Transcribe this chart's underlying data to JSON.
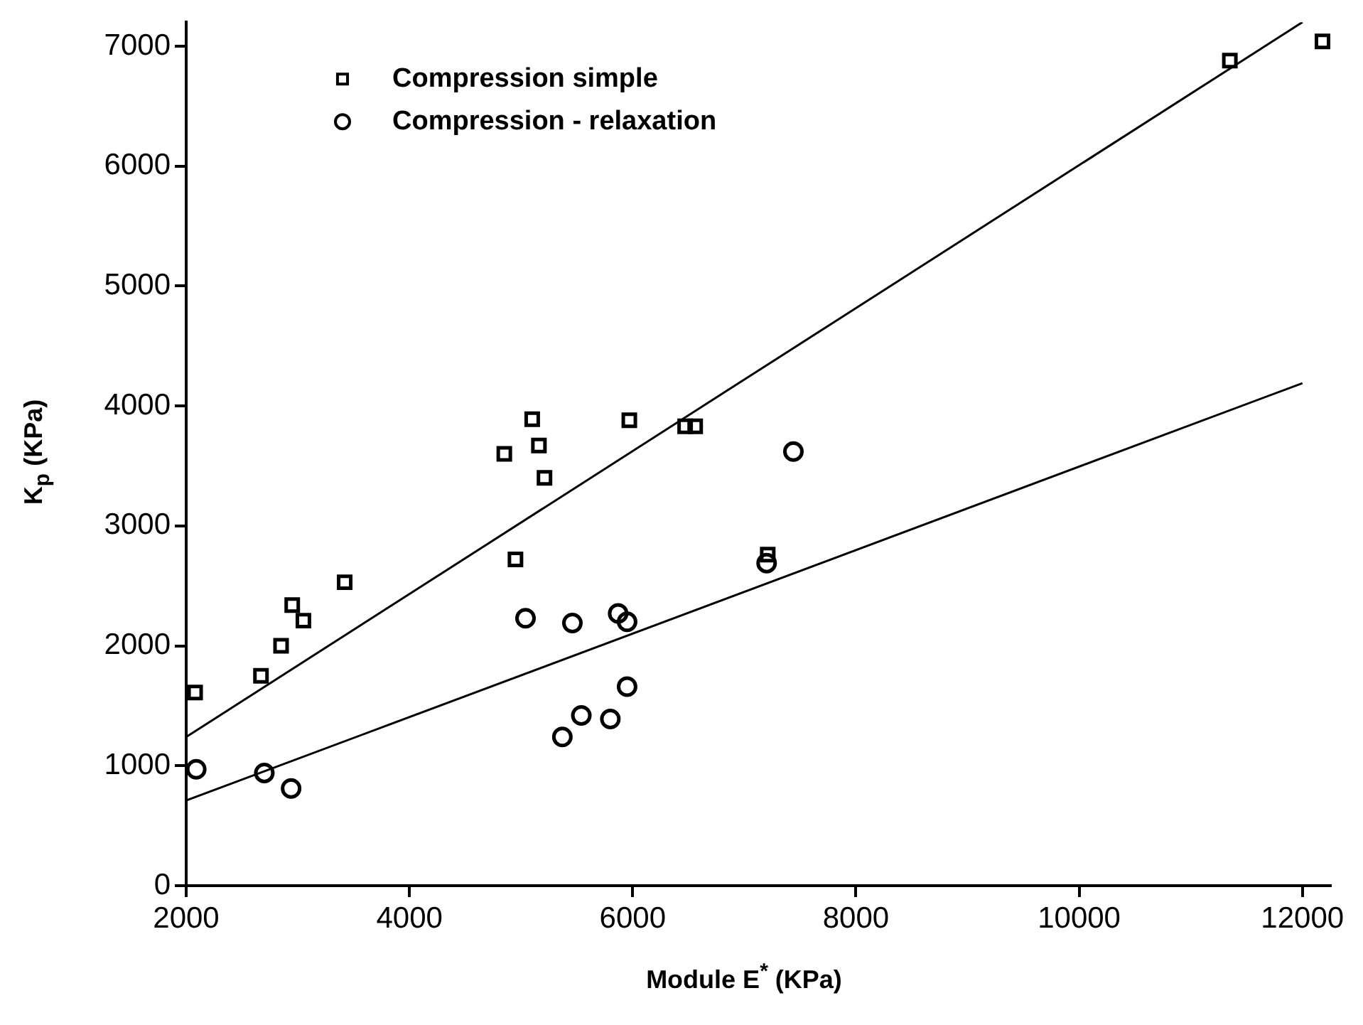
{
  "chart_data": {
    "type": "scatter",
    "xlabel": "Module E$^{*}$ (KPa)",
    "ylabel": "K$_{p}$ (KPa)",
    "xlim": [
      2000,
      12250
    ],
    "xticks": [
      2000,
      4000,
      6000,
      8000,
      10000,
      12000
    ],
    "ylim": [
      0,
      7200
    ],
    "yticks": [
      0,
      1000,
      2000,
      3000,
      4000,
      5000,
      6000,
      7000
    ],
    "legend": "top left",
    "grid": false,
    "series": [
      {
        "name": "Compression simple",
        "type": "scatter",
        "marker": "square",
        "color": "#000000",
        "x": [
          2080,
          2670,
          2850,
          2950,
          3050,
          3420,
          4850,
          5100,
          5160,
          5210,
          4950,
          5970,
          6470,
          6560,
          7210,
          11350,
          12180
        ],
        "values": [
          1610,
          1750,
          2000,
          2340,
          2210,
          2530,
          3600,
          3890,
          3670,
          3400,
          2720,
          3880,
          3830,
          3830,
          2760,
          6880,
          7040
        ]
      },
      {
        "name": "Compression - relaxation",
        "type": "scatter",
        "marker": "circle",
        "color": "#000000",
        "x": [
          2090,
          2700,
          2940,
          5040,
          5460,
          5870,
          5950,
          5950,
          5540,
          5800,
          5370,
          7440,
          7200
        ],
        "values": [
          970,
          940,
          810,
          2230,
          2190,
          2270,
          2200,
          1660,
          1420,
          1390,
          1240,
          3620,
          2690
        ]
      },
      {
        "type": "line",
        "marker": "none",
        "line_style": "solid",
        "color": "#000000",
        "x": [
          2000,
          12000
        ],
        "values": [
          1240,
          7200
        ]
      },
      {
        "type": "line",
        "marker": "none",
        "line_style": "solid",
        "color": "#000000",
        "x": [
          2000,
          12000
        ],
        "values": [
          710,
          4190
        ]
      }
    ]
  }
}
